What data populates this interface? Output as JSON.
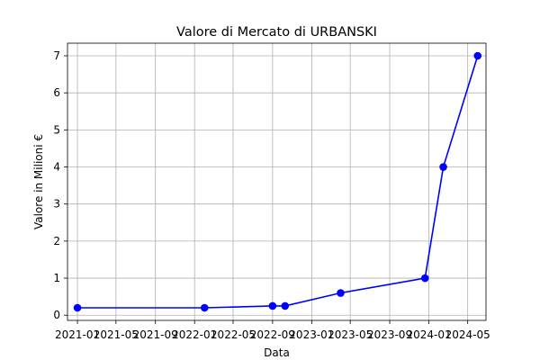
{
  "chart_data": {
    "type": "line",
    "title": "Valore di Mercato di URBANSKI",
    "xlabel": "Data",
    "ylabel": "Valore in Milioni €",
    "x_ticks": [
      "2021-01",
      "2021-05",
      "2021-09",
      "2022-01",
      "2022-05",
      "2022-09",
      "2023-01",
      "2023-05",
      "2023-09",
      "2024-01",
      "2024-05"
    ],
    "y_ticks": [
      0,
      1,
      2,
      3,
      4,
      5,
      6,
      7
    ],
    "xlim": [
      "2020-12-01",
      "2024-06-27"
    ],
    "ylim": [
      -0.14,
      7.34
    ],
    "grid": true,
    "series": [
      {
        "color": "#0000ff",
        "marker": "circle",
        "x": [
          "2021-01-01",
          "2022-02-01",
          "2022-09-01",
          "2022-10-10",
          "2023-04-01",
          "2023-12-20",
          "2024-02-15",
          "2024-06-01"
        ],
        "values": [
          0.2,
          0.2,
          0.25,
          0.25,
          0.6,
          1.0,
          4.0,
          7.0
        ]
      }
    ]
  }
}
